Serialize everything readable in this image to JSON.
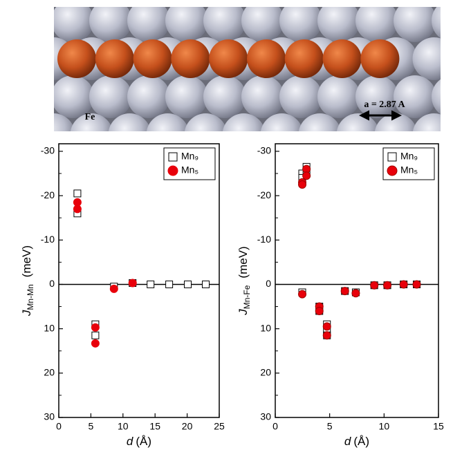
{
  "illustration": {
    "substrate_label": "Fe",
    "lattice_label": "a = 2.87 A"
  },
  "chart_data": [
    {
      "type": "scatter",
      "xlabel": "d",
      "xlabel_unit": "(Å)",
      "ylabel": "J",
      "ylabel_sub": "Mn-Mn",
      "ylabel_unit": "(meV)",
      "xlim": [
        0,
        25
      ],
      "xticks": [
        0,
        5,
        10,
        15,
        20,
        25
      ],
      "ylim": [
        -31.7,
        30
      ],
      "y_inverted": true,
      "yticks": [
        -30,
        -20,
        -10,
        0,
        10,
        20,
        30
      ],
      "yminor_ticks": [
        -25,
        -15,
        -5,
        5,
        15,
        25
      ],
      "zero_line": true,
      "legend": "upper right",
      "series": [
        {
          "name": "Mn₉",
          "marker": "square",
          "color": "#ffffff",
          "edge": "#000000",
          "x": [
            2.9,
            2.9,
            5.7,
            5.7,
            8.6,
            11.5,
            14.3,
            17.2,
            20.1,
            22.9
          ],
          "values": [
            -20.5,
            -16,
            9,
            11.5,
            0.5,
            -0.3,
            0,
            0,
            0,
            0
          ]
        },
        {
          "name": "Mn₅",
          "marker": "circle",
          "color": "#e8000b",
          "edge": "#e8000b",
          "x": [
            2.9,
            2.9,
            5.7,
            5.7,
            8.6,
            11.5
          ],
          "values": [
            -18.5,
            -17,
            9.7,
            13.3,
            1,
            -0.3
          ]
        }
      ]
    },
    {
      "type": "scatter",
      "xlabel": "d",
      "xlabel_unit": "(Å)",
      "ylabel": "J",
      "ylabel_sub": "Mn-Fe",
      "ylabel_unit": "(meV)",
      "xlim": [
        0,
        15
      ],
      "xticks": [
        0,
        5,
        10,
        15
      ],
      "ylim": [
        -31.7,
        30
      ],
      "y_inverted": true,
      "yticks": [
        -30,
        -20,
        -10,
        0,
        10,
        20,
        30
      ],
      "yminor_ticks": [
        -25,
        -15,
        -5,
        5,
        15,
        25
      ],
      "zero_line": true,
      "legend": "upper right",
      "series": [
        {
          "name": "Mn₉",
          "marker": "square",
          "color": "#ffffff",
          "edge": "#000000",
          "x": [
            2.48,
            2.48,
            2.48,
            2.87,
            2.87,
            4.05,
            4.05,
            4.75,
            4.75,
            4.75,
            6.4,
            7.4,
            9.1,
            10.3,
            11.8,
            13.0
          ],
          "values": [
            1.8,
            -25,
            -24,
            -26.5,
            -25,
            5,
            6,
            9,
            10.5,
            11.5,
            1.5,
            1.8,
            0.2,
            0.2,
            0,
            0
          ]
        },
        {
          "name": "Mn₅",
          "marker": "circle",
          "color": "#e8000b",
          "edge": "#a00000",
          "x": [
            2.48,
            2.48,
            2.48,
            2.87,
            2.87,
            4.05,
            4.05,
            4.75,
            4.75,
            6.4,
            7.4,
            9.1,
            10.3,
            11.8,
            13.0
          ],
          "values": [
            2.2,
            -23,
            -22.5,
            -26,
            -24.5,
            5,
            6,
            9.5,
            11.5,
            1.5,
            2,
            0.2,
            0.2,
            0,
            0
          ]
        }
      ]
    }
  ]
}
